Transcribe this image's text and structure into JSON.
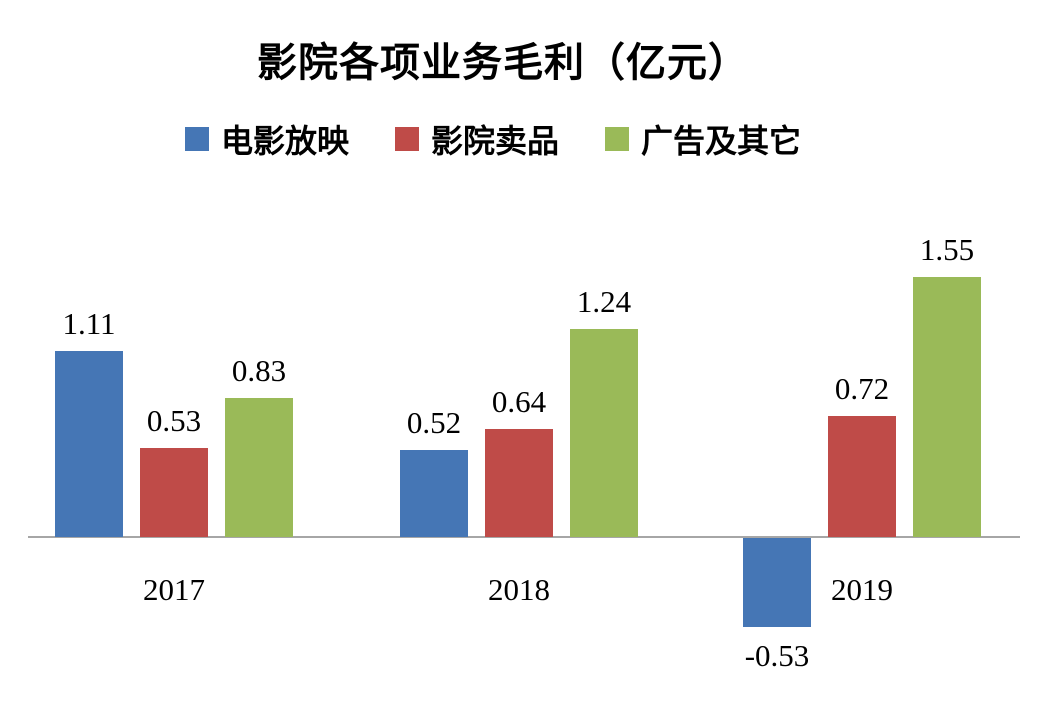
{
  "chart_data": {
    "type": "bar",
    "title": "影院各项业务毛利（亿元）",
    "categories": [
      "2017",
      "2018",
      "2019"
    ],
    "series": [
      {
        "name": "电影放映",
        "color": "#4576b5",
        "values": [
          1.11,
          0.52,
          -0.53
        ]
      },
      {
        "name": "影院卖品",
        "color": "#bf4b48",
        "values": [
          0.53,
          0.64,
          0.72
        ]
      },
      {
        "name": "广告及其它",
        "color": "#9aba58",
        "values": [
          0.83,
          1.24,
          1.55
        ]
      }
    ],
    "value_labels": [
      "1.11",
      "0.53",
      "0.83",
      "0.52",
      "0.64",
      "1.24",
      "-0.53",
      "0.72",
      "1.55"
    ],
    "ylim": [
      -0.8,
      1.8
    ],
    "grid": false,
    "legend_position": "top",
    "axis_color": "#a6a6a6",
    "background": "#ffffff"
  }
}
